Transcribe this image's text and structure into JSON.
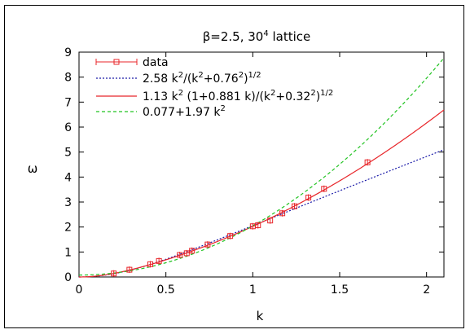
{
  "chart_data": {
    "type": "scatter",
    "title": "β=2.5, 30^4 lattice",
    "title_parts": {
      "main": "β=2.5, 30",
      "sup": "4",
      "tail": " lattice"
    },
    "xlabel": "k",
    "ylabel": "ω",
    "xlim": [
      0,
      2.1
    ],
    "ylim": [
      0,
      9
    ],
    "xticks": [
      "0",
      "0.5",
      "1",
      "1.5",
      "2"
    ],
    "yticks": [
      "0",
      "1",
      "2",
      "3",
      "4",
      "5",
      "6",
      "7",
      "8",
      "9"
    ],
    "grid": false,
    "legend_position": "top-left",
    "legend": [
      {
        "label": "data",
        "parts": [
          [
            "data",
            ""
          ]
        ],
        "color": "#e8262a",
        "style": "errorbar-square"
      },
      {
        "label": "2.58 k^2/(k^2+0.76^2)^1/2",
        "parts": [
          [
            "2.58 k",
            ""
          ],
          [
            "2",
            "sup"
          ],
          [
            "/(k",
            ""
          ],
          [
            "2",
            "sup"
          ],
          [
            "+0.76",
            ""
          ],
          [
            "2",
            "sup"
          ],
          [
            ")",
            ""
          ],
          [
            "1/2",
            "sup"
          ]
        ],
        "color": "#1a1aa8",
        "style": "dotted"
      },
      {
        "label": "1.13 k^2 (1+0.881 k)/(k^2+0.32^2)^1/2",
        "parts": [
          [
            "1.13 k",
            ""
          ],
          [
            "2",
            "sup"
          ],
          [
            " (1+0.881 k)/(k",
            ""
          ],
          [
            "2",
            "sup"
          ],
          [
            "+0.32",
            ""
          ],
          [
            "2",
            "sup"
          ],
          [
            ")",
            ""
          ],
          [
            "1/2",
            "sup"
          ]
        ],
        "color": "#e8262a",
        "style": "solid"
      },
      {
        "label": "0.077+1.97 k^2",
        "parts": [
          [
            "0.077+1.97 k",
            ""
          ],
          [
            "2",
            "sup"
          ]
        ],
        "color": "#22c322",
        "style": "dashed"
      }
    ],
    "series": [
      {
        "name": "data",
        "kind": "points",
        "color": "#e8262a",
        "x": [
          0.2,
          0.29,
          0.41,
          0.46,
          0.58,
          0.62,
          0.65,
          0.74,
          0.87,
          1.0,
          1.03,
          1.1,
          1.17,
          1.24,
          1.32,
          1.41,
          1.66
        ],
        "y": [
          0.14,
          0.29,
          0.51,
          0.64,
          0.88,
          0.95,
          1.05,
          1.3,
          1.64,
          2.03,
          2.07,
          2.26,
          2.55,
          2.83,
          3.18,
          3.53,
          4.59
        ]
      },
      {
        "name": "2.58 k^2/(k^2+0.76^2)^1/2",
        "kind": "function",
        "formula": "2.58*k^2/sqrt(k^2+0.76^2)",
        "color": "#1a1aa8",
        "dash": "2,2"
      },
      {
        "name": "1.13 k^2 (1+0.881 k)/(k^2+0.32^2)^1/2",
        "kind": "function",
        "formula": "1.13*k^2*(1+0.881*k)/sqrt(k^2+0.32^2)",
        "color": "#e8262a",
        "dash": ""
      },
      {
        "name": "0.077+1.97 k^2",
        "kind": "function",
        "formula": "0.077+1.97*k^2",
        "color": "#22c322",
        "dash": "4,3"
      }
    ]
  }
}
